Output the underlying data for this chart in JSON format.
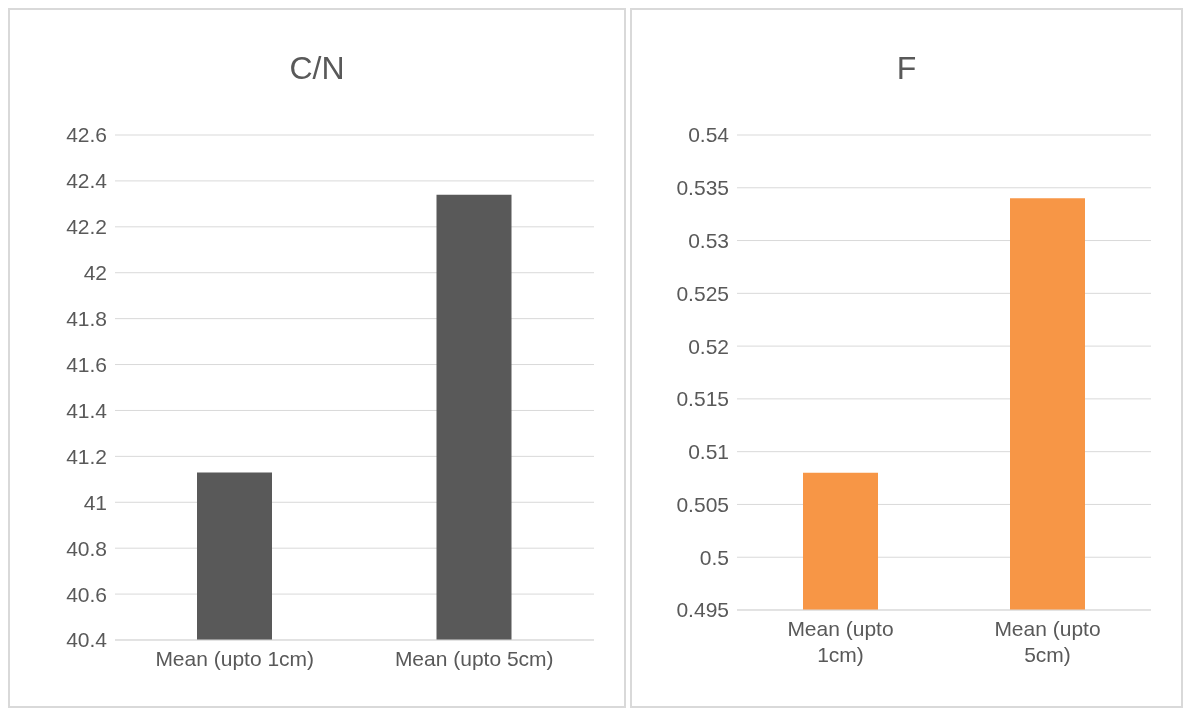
{
  "chart_data": [
    {
      "type": "bar",
      "title": "C/N",
      "categories": [
        "Mean (upto 1cm)",
        "Mean (upto 5cm)"
      ],
      "values": [
        41.13,
        42.34
      ],
      "color": "#595959",
      "ylim": [
        40.4,
        42.6
      ],
      "yticks": [
        40.4,
        40.6,
        40.8,
        41,
        41.2,
        41.4,
        41.6,
        41.8,
        42,
        42.2,
        42.4,
        42.6
      ],
      "grid": "y"
    },
    {
      "type": "bar",
      "title": "F",
      "categories": [
        "Mean (upto 1cm)",
        "Mean (upto 5cm)"
      ],
      "values": [
        0.508,
        0.534
      ],
      "color": "#f79646",
      "ylim": [
        0.495,
        0.54
      ],
      "yticks": [
        0.495,
        0.5,
        0.505,
        0.51,
        0.515,
        0.52,
        0.525,
        0.53,
        0.535,
        0.54
      ],
      "grid": "y"
    }
  ]
}
